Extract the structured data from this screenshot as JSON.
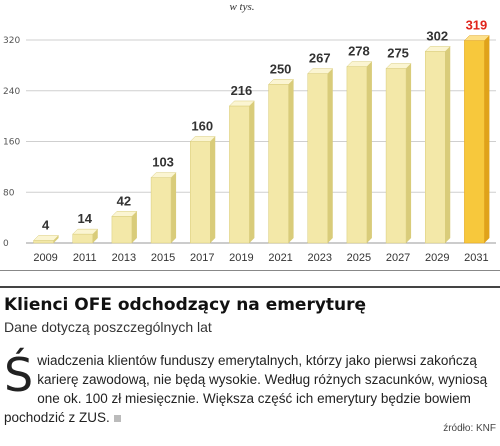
{
  "chart_data": {
    "type": "bar",
    "unit_label": "w tys.",
    "categories": [
      "2009",
      "2011",
      "2013",
      "2015",
      "2017",
      "2019",
      "2021",
      "2023",
      "2025",
      "2027",
      "2029",
      "2031"
    ],
    "values": [
      4,
      14,
      42,
      103,
      160,
      216,
      250,
      267,
      278,
      275,
      302,
      319
    ],
    "y_ticks": [
      0,
      80,
      160,
      240,
      320
    ],
    "ylim": [
      0,
      320
    ],
    "grid": true,
    "highlight_index": 11,
    "colors": {
      "bar_front": "#f3e8a8",
      "bar_side": "#d9cc7a",
      "bar_top": "#fbf5d2",
      "highlight_front": "#f7c83c",
      "highlight_side": "#e0a21a",
      "highlight_top": "#fde08a",
      "highlight_label": "#e0241b"
    }
  },
  "article": {
    "title": "Klienci OFE odchodzący na emeryturę",
    "subtitle": "Dane dotyczą poszczególnych lat",
    "dropcap": "Ś",
    "body": "wiadczenia klientów funduszy emerytalnych, którzy jako pierwsi zakończą karierę zawodową, nie będą wysokie. Według różnych szacunków, wyniosą one ok. 100 zł miesięcznie. Większa część ich emerytury będzie bowiem pochodzić z ZUS.",
    "source": "źródło: KNF"
  }
}
